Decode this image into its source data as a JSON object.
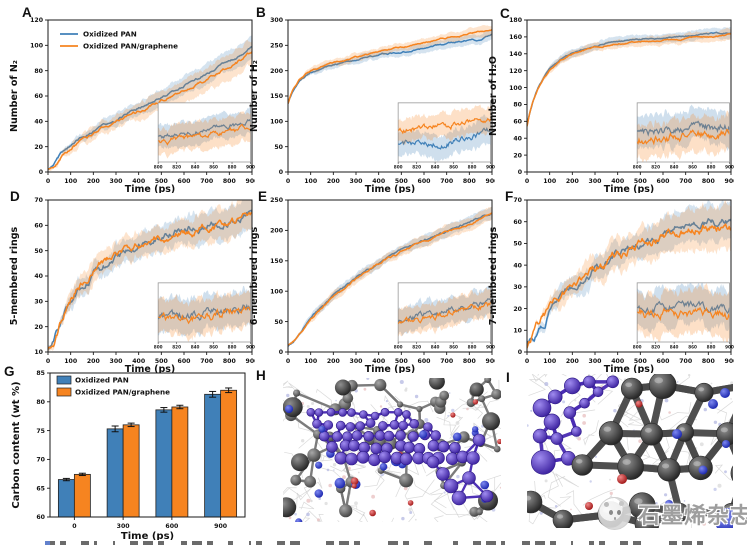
{
  "figure": {
    "background": "#ffffff",
    "type": "multi-panel simulation results figure"
  },
  "panels": [
    {
      "label": "A"
    },
    {
      "label": "B"
    },
    {
      "label": "C"
    },
    {
      "label": "D"
    },
    {
      "label": "E"
    },
    {
      "label": "F"
    },
    {
      "label": "G"
    },
    {
      "label": "H"
    },
    {
      "label": "I"
    }
  ],
  "colors": {
    "series_blue": "#4080b8",
    "series_orange": "#f68420",
    "axis": "#1a1a1a"
  },
  "legend": {
    "items": [
      {
        "label": "Oxidized PAN",
        "color": "#4080b8"
      },
      {
        "label": "Oxidized PAN/graphene",
        "color": "#f68420"
      }
    ]
  },
  "chart_data": [
    {
      "id": "A",
      "type": "line",
      "ylabel": "Number of N₂",
      "xlabel": "Time (ps)",
      "x": [
        0,
        10,
        25,
        50,
        75,
        100,
        150,
        200,
        250,
        300,
        350,
        400,
        450,
        500,
        550,
        600,
        650,
        700,
        750,
        800,
        850,
        900
      ],
      "xticks": [
        0,
        100,
        200,
        300,
        400,
        500,
        600,
        700,
        800,
        900
      ],
      "ylim": [
        0,
        120
      ],
      "yticks": [
        0,
        20,
        40,
        60,
        80,
        100,
        120
      ],
      "legend_visible": true,
      "seed": 3,
      "noise": 0.25,
      "band_growth": 1.1,
      "series": [
        {
          "name": "Oxidized PAN",
          "color": "#4080b8",
          "band": 6,
          "values": [
            2,
            3,
            5,
            12,
            17,
            21,
            27,
            32,
            37,
            41,
            46,
            51,
            55,
            59,
            63,
            68,
            72,
            77,
            82,
            87,
            92,
            99
          ]
        },
        {
          "name": "Oxidized PAN/graphene",
          "color": "#f68420",
          "band": 7,
          "values": [
            2,
            3,
            5,
            10,
            15,
            19,
            25,
            30,
            36,
            40,
            44,
            48,
            52,
            56,
            60,
            64,
            68,
            73,
            78,
            83,
            88,
            95
          ]
        }
      ],
      "inset": {
        "xrange": [
          800,
          900
        ],
        "xticks": [
          800,
          820,
          840,
          860,
          880,
          900
        ]
      }
    },
    {
      "id": "B",
      "type": "line",
      "ylabel": "Number of H₂",
      "xlabel": "Time (ps)",
      "x": [
        0,
        10,
        25,
        50,
        75,
        100,
        150,
        200,
        250,
        300,
        350,
        400,
        450,
        500,
        550,
        600,
        650,
        700,
        750,
        800,
        850,
        900
      ],
      "xticks": [
        0,
        100,
        200,
        300,
        400,
        500,
        600,
        700,
        800,
        900
      ],
      "ylim": [
        0,
        300
      ],
      "yticks": [
        0,
        50,
        100,
        150,
        200,
        250,
        300
      ],
      "legend_visible": false,
      "seed": 5,
      "noise": 0.3,
      "band_growth": 0.5,
      "series": [
        {
          "name": "Oxidized PAN",
          "color": "#4080b8",
          "band": 8,
          "values": [
            135,
            148,
            162,
            178,
            188,
            196,
            205,
            211,
            217,
            222,
            227,
            231,
            234,
            237,
            241,
            245,
            249,
            253,
            257,
            262,
            261,
            272
          ]
        },
        {
          "name": "Oxidized PAN/graphene",
          "color": "#f68420",
          "band": 8,
          "values": [
            135,
            149,
            164,
            181,
            192,
            200,
            209,
            215,
            221,
            227,
            232,
            237,
            242,
            247,
            252,
            257,
            261,
            264,
            268,
            272,
            276,
            280
          ]
        }
      ],
      "inset": {
        "xrange": [
          800,
          900
        ],
        "xticks": [
          800,
          820,
          840,
          860,
          880,
          900
        ]
      }
    },
    {
      "id": "C",
      "type": "line",
      "ylabel": "Number of H₂O",
      "xlabel": "Time (ps)",
      "x": [
        0,
        10,
        25,
        50,
        75,
        100,
        150,
        200,
        250,
        300,
        350,
        400,
        450,
        500,
        550,
        600,
        650,
        700,
        750,
        800,
        850,
        900
      ],
      "xticks": [
        0,
        100,
        200,
        300,
        400,
        500,
        600,
        700,
        800,
        900
      ],
      "ylim": [
        0,
        180
      ],
      "yticks": [
        0,
        20,
        40,
        60,
        80,
        100,
        120,
        140,
        160,
        180
      ],
      "legend_visible": false,
      "seed": 7,
      "noise": 0.25,
      "band_growth": 0.4,
      "series": [
        {
          "name": "Oxidized PAN",
          "color": "#4080b8",
          "band": 5,
          "values": [
            55,
            68,
            82,
            100,
            112,
            122,
            134,
            141,
            146,
            149,
            152,
            154,
            156,
            157,
            158,
            159,
            160,
            161,
            162,
            163,
            164,
            165
          ]
        },
        {
          "name": "Oxidized PAN/graphene",
          "color": "#f68420",
          "band": 5,
          "values": [
            54,
            67,
            81,
            99,
            110,
            120,
            132,
            140,
            144,
            147,
            150,
            152,
            153,
            154,
            155,
            156,
            157,
            158,
            159,
            160,
            161,
            163
          ]
        }
      ],
      "inset": {
        "xrange": [
          800,
          900
        ],
        "xticks": [
          800,
          820,
          840,
          860,
          880,
          900
        ]
      }
    },
    {
      "id": "D",
      "type": "line",
      "ylabel": "5-membered rings",
      "xlabel": "Time (ps)",
      "x": [
        0,
        10,
        25,
        50,
        75,
        100,
        150,
        200,
        250,
        300,
        350,
        400,
        450,
        500,
        550,
        600,
        650,
        700,
        750,
        800,
        850,
        900
      ],
      "xticks": [
        0,
        100,
        200,
        300,
        400,
        500,
        600,
        700,
        800,
        900
      ],
      "ylim": [
        10,
        70
      ],
      "yticks": [
        10,
        20,
        30,
        40,
        50,
        60,
        70
      ],
      "legend_visible": false,
      "seed": 11,
      "noise": 0.45,
      "band_growth": 0.7,
      "series": [
        {
          "name": "Oxidized PAN",
          "color": "#4080b8",
          "band": 5,
          "values": [
            12,
            13,
            15,
            20,
            25,
            30,
            36,
            41,
            44,
            47,
            50,
            52,
            54,
            56,
            57,
            58,
            59,
            60,
            61,
            62,
            63,
            66
          ]
        },
        {
          "name": "Oxidized PAN/graphene",
          "color": "#f68420",
          "band": 5,
          "values": [
            12,
            13,
            15,
            21,
            26,
            31,
            37,
            42,
            45,
            48,
            50,
            52,
            53,
            55,
            56,
            57,
            58,
            59,
            60,
            61,
            62,
            65
          ]
        }
      ],
      "inset": {
        "xrange": [
          800,
          900
        ],
        "xticks": [
          800,
          820,
          840,
          860,
          880,
          900
        ]
      }
    },
    {
      "id": "E",
      "type": "line",
      "ylabel": "6-membered rings",
      "xlabel": "Time (ps)",
      "x": [
        0,
        10,
        25,
        50,
        75,
        100,
        150,
        200,
        250,
        300,
        350,
        400,
        450,
        500,
        550,
        600,
        650,
        700,
        750,
        800,
        850,
        900
      ],
      "xticks": [
        0,
        100,
        200,
        300,
        400,
        500,
        600,
        700,
        800,
        900
      ],
      "ylim": [
        0,
        250
      ],
      "yticks": [
        0,
        50,
        100,
        150,
        200,
        250
      ],
      "legend_visible": false,
      "seed": 13,
      "noise": 0.3,
      "band_growth": 0.7,
      "series": [
        {
          "name": "Oxidized PAN",
          "color": "#4080b8",
          "band": 8,
          "values": [
            10,
            12,
            18,
            30,
            42,
            55,
            75,
            92,
            107,
            122,
            135,
            147,
            157,
            166,
            175,
            183,
            191,
            199,
            206,
            213,
            221,
            228
          ]
        },
        {
          "name": "Oxidized PAN/graphene",
          "color": "#f68420",
          "band": 8,
          "values": [
            10,
            12,
            17,
            29,
            41,
            53,
            73,
            90,
            105,
            120,
            133,
            145,
            155,
            164,
            173,
            181,
            189,
            197,
            204,
            211,
            219,
            226
          ]
        }
      ],
      "inset": {
        "xrange": [
          800,
          900
        ],
        "xticks": [
          800,
          820,
          840,
          860,
          880,
          900
        ]
      }
    },
    {
      "id": "F",
      "type": "line",
      "ylabel": "7-membered rings",
      "xlabel": "Time (ps)",
      "x": [
        0,
        10,
        25,
        50,
        75,
        100,
        150,
        200,
        250,
        300,
        350,
        400,
        450,
        500,
        550,
        600,
        650,
        700,
        750,
        800,
        850,
        900
      ],
      "xticks": [
        0,
        100,
        200,
        300,
        400,
        500,
        600,
        700,
        800,
        900
      ],
      "ylim": [
        0,
        70
      ],
      "yticks": [
        0,
        10,
        20,
        30,
        40,
        50,
        60,
        70
      ],
      "legend_visible": false,
      "seed": 17,
      "noise": 0.45,
      "band_growth": 0.9,
      "series": [
        {
          "name": "Oxidized PAN",
          "color": "#4080b8",
          "band": 6,
          "values": [
            3,
            4,
            6,
            10,
            14,
            18,
            25,
            30,
            35,
            38,
            41,
            44,
            47,
            50,
            52,
            54,
            56,
            58,
            59,
            60,
            60,
            60
          ]
        },
        {
          "name": "Oxidized PAN/graphene",
          "color": "#f68420",
          "band": 7,
          "values": [
            3,
            4,
            6,
            11,
            15,
            19,
            26,
            31,
            36,
            39,
            42,
            45,
            47,
            49,
            51,
            53,
            55,
            56,
            57,
            58,
            57,
            57
          ]
        }
      ],
      "inset": {
        "xrange": [
          800,
          900
        ],
        "xticks": [
          800,
          820,
          840,
          860,
          880,
          900
        ]
      }
    },
    {
      "id": "G",
      "type": "bar",
      "ylabel": "Carbon content (wt %)",
      "xlabel": "Time (ps)",
      "categories": [
        "0",
        "300",
        "600",
        "900"
      ],
      "ylim": [
        60,
        85
      ],
      "yticks": [
        60,
        65,
        70,
        75,
        80,
        85
      ],
      "legend_visible": true,
      "series": [
        {
          "name": "Oxidized PAN",
          "color": "#4080b8",
          "values": [
            66.5,
            75.3,
            78.6,
            81.3
          ],
          "errors": [
            0.2,
            0.5,
            0.4,
            0.5
          ]
        },
        {
          "name": "Oxidized PAN/graphene",
          "color": "#f68420",
          "values": [
            67.4,
            76.0,
            79.1,
            82.0
          ],
          "errors": [
            0.2,
            0.3,
            0.3,
            0.4
          ]
        }
      ]
    }
  ],
  "molecular_panels": [
    {
      "id": "H",
      "seed": 7,
      "description": "Wide MD snapshot: amorphous carbonized PAN network (gray) with embedded graphene sheet (purple), nitrogen (blue) and oxygen (red) atoms",
      "atom_colors": {
        "carbon": "#4a4a4a",
        "nitrogen": "#2333c4",
        "oxygen": "#c32020",
        "graphene": "#5434bf"
      }
    },
    {
      "id": "I",
      "seed": 23,
      "description": "Close-up MD snapshot: large carbon ring network (dark gray) beside graphene cluster (purple), nitrogen (blue) and oxygen (red) atoms",
      "atom_colors": {
        "carbon": "#454545",
        "nitrogen": "#2333c4",
        "oxygen": "#c32020",
        "graphene": "#5434bf"
      }
    }
  ],
  "watermark": {
    "text": "石墨烯杂志",
    "icon": "panda-logo"
  }
}
